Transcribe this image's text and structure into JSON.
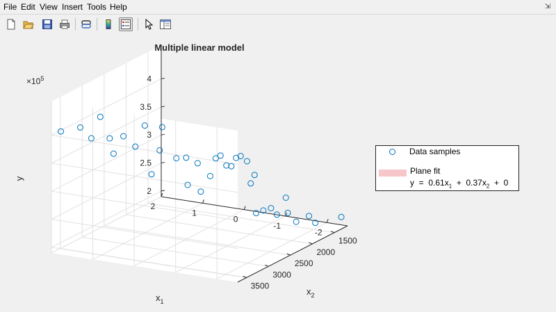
{
  "menu": {
    "items": [
      "File",
      "Edit",
      "View",
      "Insert",
      "Tools",
      "Help"
    ]
  },
  "toolbar": {
    "buttons": [
      "new-figure-icon",
      "open-file-icon",
      "save-icon",
      "print-icon",
      "link-plot-icon",
      "colorbar-icon",
      "legend-icon",
      "select-arrow-icon",
      "property-inspector-icon"
    ]
  },
  "colors": {
    "marker": "#0072bd",
    "plane_fill": "#f7c6c8"
  },
  "chart_data": {
    "type": "scatter",
    "title": "Multiple linear model",
    "x1_label": "x",
    "x1_sub": "1",
    "x2_label": "x",
    "x2_sub": "2",
    "y_label": "y",
    "y_exponent_base": "×10",
    "y_exponent_power": "5",
    "x1_ticks": [
      "2",
      "1",
      "0",
      "-1",
      "-2"
    ],
    "x2_ticks": [
      "1500",
      "2000",
      "2500",
      "3000",
      "3500"
    ],
    "y_ticks": [
      "2",
      "2.5",
      "3",
      "3.5",
      "4"
    ],
    "x1_lim": [
      -2.5,
      2
    ],
    "x2_lim": [
      1200,
      3700
    ],
    "y_lim": [
      1.9,
      4.6
    ],
    "grid": true,
    "legend_position": "right",
    "legend": {
      "samples": "Data samples",
      "plane": "Plane  fit",
      "eq_prefix": "y  =  0.61x",
      "eq_sub1": "1",
      "eq_mid": "  +  0.37x",
      "eq_sub2": "2",
      "eq_suffix": "  +  0"
    },
    "points": [
      {
        "x1": 1.9,
        "x2": 3580,
        "y": 4.03
      },
      {
        "x1": 1.6,
        "x2": 3420,
        "y": 4.07
      },
      {
        "x1": 1.45,
        "x2": 3310,
        "y": 3.85
      },
      {
        "x1": 1.35,
        "x2": 3200,
        "y": 4.2
      },
      {
        "x1": 1.25,
        "x2": 3080,
        "y": 3.78
      },
      {
        "x1": 1.05,
        "x2": 3180,
        "y": 3.57
      },
      {
        "x1": 0.95,
        "x2": 3050,
        "y": 3.84
      },
      {
        "x1": 0.8,
        "x2": 2920,
        "y": 3.62
      },
      {
        "x1": 0.7,
        "x2": 2800,
        "y": 3.96
      },
      {
        "x1": 0.6,
        "x2": 2740,
        "y": 3.08
      },
      {
        "x1": 0.5,
        "x2": 2650,
        "y": 3.48
      },
      {
        "x1": 0.3,
        "x2": 2780,
        "y": 3.97
      },
      {
        "x1": 0.15,
        "x2": 2600,
        "y": 3.36
      },
      {
        "x1": 0.05,
        "x2": 2470,
        "y": 3.33
      },
      {
        "x1": -0.05,
        "x2": 2530,
        "y": 2.88
      },
      {
        "x1": -0.1,
        "x2": 2350,
        "y": 3.2
      },
      {
        "x1": -0.25,
        "x2": 2420,
        "y": 2.74
      },
      {
        "x1": -0.35,
        "x2": 2300,
        "y": 2.98
      },
      {
        "x1": -0.4,
        "x2": 2220,
        "y": 3.27
      },
      {
        "x1": -0.45,
        "x2": 2160,
        "y": 3.3
      },
      {
        "x1": -0.55,
        "x2": 2120,
        "y": 3.12
      },
      {
        "x1": -0.65,
        "x2": 2100,
        "y": 3.11
      },
      {
        "x1": -0.7,
        "x2": 2040,
        "y": 3.24
      },
      {
        "x1": -0.8,
        "x2": 2030,
        "y": 3.28
      },
      {
        "x1": -0.9,
        "x2": 1980,
        "y": 3.18
      },
      {
        "x1": -1.0,
        "x2": 1990,
        "y": 2.8
      },
      {
        "x1": -1.05,
        "x2": 1950,
        "y": 2.94
      },
      {
        "x1": -1.3,
        "x2": 2150,
        "y": 2.37
      },
      {
        "x1": -1.4,
        "x2": 2080,
        "y": 2.4
      },
      {
        "x1": -1.5,
        "x2": 2000,
        "y": 2.42
      },
      {
        "x1": -1.6,
        "x2": 1960,
        "y": 2.3
      },
      {
        "x1": -1.7,
        "x2": 1850,
        "y": 2.57
      },
      {
        "x1": -1.8,
        "x2": 1900,
        "y": 2.33
      },
      {
        "x1": -1.95,
        "x2": 1850,
        "y": 2.17
      },
      {
        "x1": -2.1,
        "x2": 1700,
        "y": 2.23
      },
      {
        "x1": -2.2,
        "x2": 1650,
        "y": 2.1
      },
      {
        "x1": -2.35,
        "x2": 1200,
        "y": 2.04
      }
    ]
  }
}
